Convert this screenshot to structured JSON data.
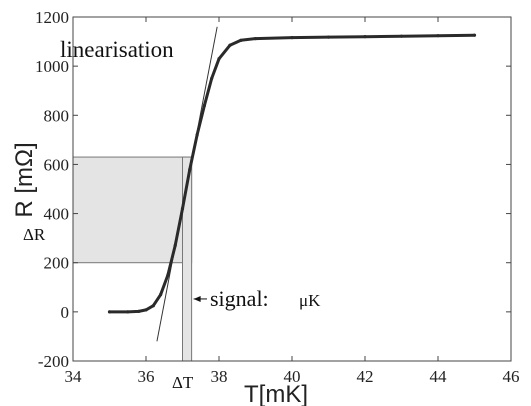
{
  "chart_data": {
    "type": "scatter",
    "xlabel": "T[mK]",
    "ylabel": "R [mΩ]",
    "xlim": [
      34,
      46
    ],
    "ylim": [
      -200,
      1200
    ],
    "xticks": [
      34,
      36,
      38,
      40,
      42,
      44,
      46
    ],
    "yticks": [
      -200,
      0,
      200,
      400,
      600,
      800,
      1000,
      1200
    ],
    "grid": false,
    "series": [
      {
        "points": [
          [
            35.0,
            0
          ],
          [
            35.5,
            0
          ],
          [
            35.8,
            2
          ],
          [
            36.0,
            8
          ],
          [
            36.2,
            25
          ],
          [
            36.4,
            70
          ],
          [
            36.6,
            150
          ],
          [
            36.8,
            270
          ],
          [
            37.0,
            420
          ],
          [
            37.2,
            580
          ],
          [
            37.4,
            720
          ],
          [
            37.6,
            840
          ],
          [
            37.8,
            950
          ],
          [
            38.0,
            1030
          ],
          [
            38.3,
            1085
          ],
          [
            38.6,
            1105
          ],
          [
            39.0,
            1112
          ],
          [
            40.0,
            1116
          ],
          [
            41.0,
            1118
          ],
          [
            42.0,
            1120
          ],
          [
            43.0,
            1122
          ],
          [
            44.0,
            1124
          ],
          [
            45.0,
            1126
          ]
        ]
      }
    ],
    "annotations": {
      "linearisation": {
        "text": "linearisation",
        "line": [
          [
            36.3,
            -120
          ],
          [
            37.95,
            1160
          ]
        ]
      },
      "delta_r": {
        "text": "ΔR",
        "range": [
          200,
          630
        ]
      },
      "delta_t": {
        "text": "ΔT",
        "range": [
          37.0,
          37.25
        ]
      },
      "signal": {
        "text": "signal:",
        "unit": "μK",
        "arrow_at": 37.25,
        "arrow_y": 20
      }
    }
  }
}
